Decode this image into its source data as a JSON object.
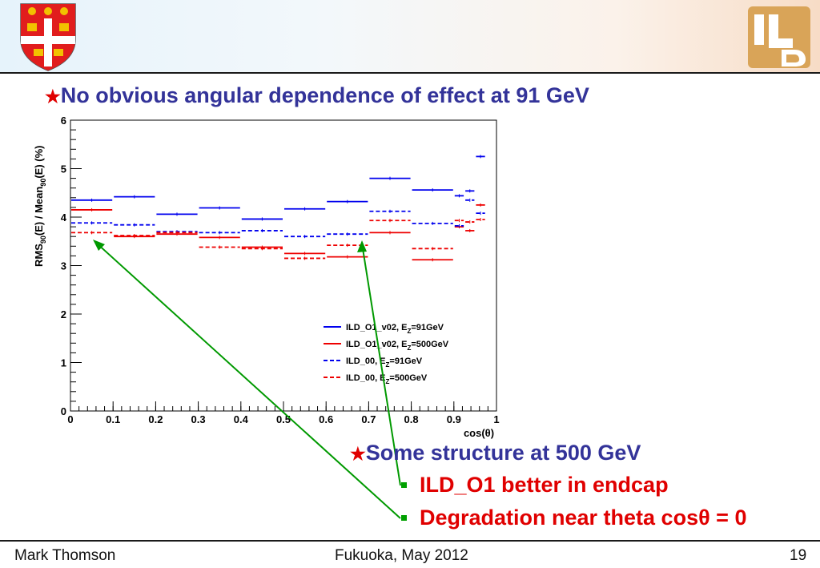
{
  "slide": {
    "bullet1": "No obvious angular dependence of effect at 91 GeV",
    "bullet2": "Some structure at 500 GeV",
    "sub1": "ILD_O1 better in endcap",
    "sub2": "Degradation near theta cosθ = 0",
    "footer_left": "Mark Thomson",
    "footer_center": "Fukuoka, May 2012",
    "page_number": "19",
    "logo_text": "ILD"
  },
  "colors": {
    "blue": "#0000ee",
    "red": "#ee0000",
    "green": "#009900",
    "title": "#333399"
  },
  "chart_data": {
    "type": "line",
    "xlabel": "cos(θ)",
    "ylabel": "RMS90(E) / Mean90(E) (%)",
    "xlim": [
      0,
      1
    ],
    "ylim": [
      0,
      6
    ],
    "x_ticks": [
      "0",
      "0.1",
      "0.2",
      "0.3",
      "0.4",
      "0.5",
      "0.6",
      "0.7",
      "0.8",
      "0.9",
      "1"
    ],
    "y_ticks": [
      "0",
      "1",
      "2",
      "3",
      "4",
      "5",
      "6"
    ],
    "legend_position": "bottom-right",
    "series": [
      {
        "name": "ILD_O1_v02, E_Z=91GeV",
        "color": "#0000ee",
        "dashed": false,
        "bins": [
          [
            0,
            0.1,
            4.35
          ],
          [
            0.1,
            0.2,
            4.42
          ],
          [
            0.2,
            0.3,
            4.06
          ],
          [
            0.3,
            0.4,
            4.19
          ],
          [
            0.4,
            0.5,
            3.96
          ],
          [
            0.5,
            0.6,
            4.17
          ],
          [
            0.6,
            0.7,
            4.32
          ],
          [
            0.7,
            0.8,
            4.8
          ],
          [
            0.8,
            0.9,
            4.56
          ],
          [
            0.9,
            0.925,
            4.44
          ],
          [
            0.925,
            0.95,
            4.54
          ],
          [
            0.95,
            0.975,
            5.25
          ]
        ]
      },
      {
        "name": "ILD_O1_v02, E_Z=500GeV",
        "color": "#ee0000",
        "dashed": false,
        "bins": [
          [
            0,
            0.1,
            4.15
          ],
          [
            0.1,
            0.2,
            3.6
          ],
          [
            0.2,
            0.3,
            3.65
          ],
          [
            0.3,
            0.4,
            3.58
          ],
          [
            0.4,
            0.5,
            3.38
          ],
          [
            0.5,
            0.6,
            3.25
          ],
          [
            0.6,
            0.7,
            3.18
          ],
          [
            0.7,
            0.8,
            3.68
          ],
          [
            0.8,
            0.9,
            3.12
          ],
          [
            0.9,
            0.925,
            3.8
          ],
          [
            0.925,
            0.95,
            3.72
          ],
          [
            0.95,
            0.975,
            4.25
          ]
        ]
      },
      {
        "name": "ILD_00, E_Z=91GeV",
        "color": "#0000ee",
        "dashed": true,
        "bins": [
          [
            0,
            0.1,
            3.88
          ],
          [
            0.1,
            0.2,
            3.84
          ],
          [
            0.2,
            0.3,
            3.7
          ],
          [
            0.3,
            0.4,
            3.68
          ],
          [
            0.4,
            0.5,
            3.72
          ],
          [
            0.5,
            0.6,
            3.6
          ],
          [
            0.6,
            0.7,
            3.65
          ],
          [
            0.7,
            0.8,
            4.12
          ],
          [
            0.8,
            0.9,
            3.87
          ],
          [
            0.9,
            0.925,
            3.82
          ],
          [
            0.925,
            0.95,
            4.35
          ],
          [
            0.95,
            0.975,
            4.08
          ]
        ]
      },
      {
        "name": "ILD_00, E_Z=500GeV",
        "color": "#ee0000",
        "dashed": true,
        "bins": [
          [
            0,
            0.1,
            3.68
          ],
          [
            0.1,
            0.2,
            3.62
          ],
          [
            0.2,
            0.3,
            3.68
          ],
          [
            0.3,
            0.4,
            3.38
          ],
          [
            0.4,
            0.5,
            3.35
          ],
          [
            0.5,
            0.6,
            3.15
          ],
          [
            0.6,
            0.7,
            3.42
          ],
          [
            0.7,
            0.8,
            3.93
          ],
          [
            0.8,
            0.9,
            3.35
          ],
          [
            0.9,
            0.925,
            3.93
          ],
          [
            0.925,
            0.95,
            3.9
          ],
          [
            0.95,
            0.975,
            3.95
          ]
        ]
      }
    ]
  }
}
